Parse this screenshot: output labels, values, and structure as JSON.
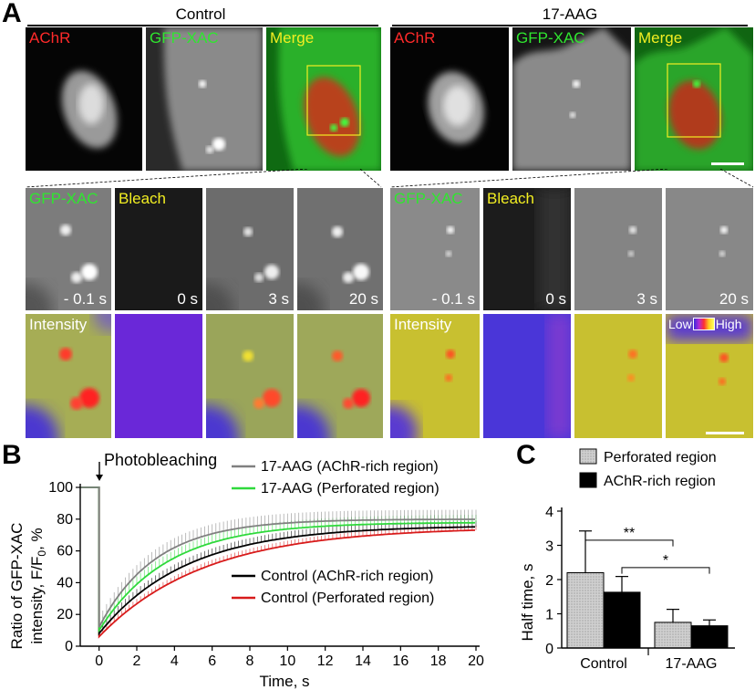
{
  "panel_a": {
    "letter": "A",
    "groups": [
      {
        "title": "Control"
      },
      {
        "title": "17-AAG"
      }
    ],
    "top_labels": [
      "AChR",
      "GFP-XAC",
      "Merge"
    ],
    "mid_labels": [
      "GFP-XAC",
      "Bleach"
    ],
    "time_labels": [
      "- 0.1 s",
      "0 s",
      "3 s",
      "20 s"
    ],
    "intensity_label": "Intensity",
    "colorbar": {
      "low": "Low",
      "high": "High"
    }
  },
  "chart_data": [
    {
      "type": "line",
      "panel": "B",
      "xlabel": "Time, s",
      "ylabel_line1": "Ratio of GFP-XAC",
      "ylabel_line2": "intensity, F/F",
      "ylabel_sub": "0",
      "ylabel_suffix": ", %",
      "xlim": [
        -1,
        20
      ],
      "ylim": [
        0,
        100
      ],
      "xticks": [
        0,
        2,
        4,
        6,
        8,
        10,
        12,
        14,
        16,
        18,
        20
      ],
      "yticks": [
        0,
        20,
        40,
        60,
        80,
        100
      ],
      "annotation": "Photobleaching",
      "annotation_x": 0,
      "series": [
        {
          "name": "17-AAG (AChR-rich region)",
          "color": "#808080",
          "pre": 100,
          "min": 12,
          "plateau": 80,
          "tau": 3.0,
          "err": 6
        },
        {
          "name": "17-AAG (Perforated region)",
          "color": "#2fd93c",
          "pre": 100,
          "min": 10,
          "plateau": 78,
          "tau": 3.6,
          "err": 5
        },
        {
          "name": "Control (AChR-rich region)",
          "color": "#000000",
          "pre": 100,
          "min": 8,
          "plateau": 76,
          "tau": 4.6,
          "err": 4
        },
        {
          "name": "Control (Perforated region)",
          "color": "#d81b1b",
          "pre": 100,
          "min": 6,
          "plateau": 75,
          "tau": 5.6,
          "err": 3
        }
      ]
    },
    {
      "type": "bar",
      "panel": "C",
      "ylabel": "Half time, s",
      "ylim": [
        0,
        4
      ],
      "yticks": [
        0,
        1,
        2,
        3,
        4
      ],
      "categories": [
        "Control",
        "17-AAG"
      ],
      "series": [
        {
          "name": "Perforated region",
          "color": "#c8c8c8",
          "values": [
            2.2,
            0.75
          ],
          "errors": [
            1.22,
            0.38
          ]
        },
        {
          "name": "AChR-rich region",
          "color": "#000000",
          "values": [
            1.63,
            0.65
          ],
          "errors": [
            0.46,
            0.17
          ]
        }
      ],
      "significance": [
        {
          "label": "**",
          "y": 3.15,
          "tip_y": 2.97
        },
        {
          "label": "*",
          "y": 2.35,
          "tip_y": 2.17
        }
      ]
    }
  ],
  "panel_letters": {
    "b": "B",
    "c": "C"
  },
  "colors": {
    "green": "#2fe62f",
    "red": "#ff2a2a",
    "yellow": "#f2ee22",
    "fire_low": "#3a2ad8",
    "fire_high": "#ff1a1a"
  }
}
